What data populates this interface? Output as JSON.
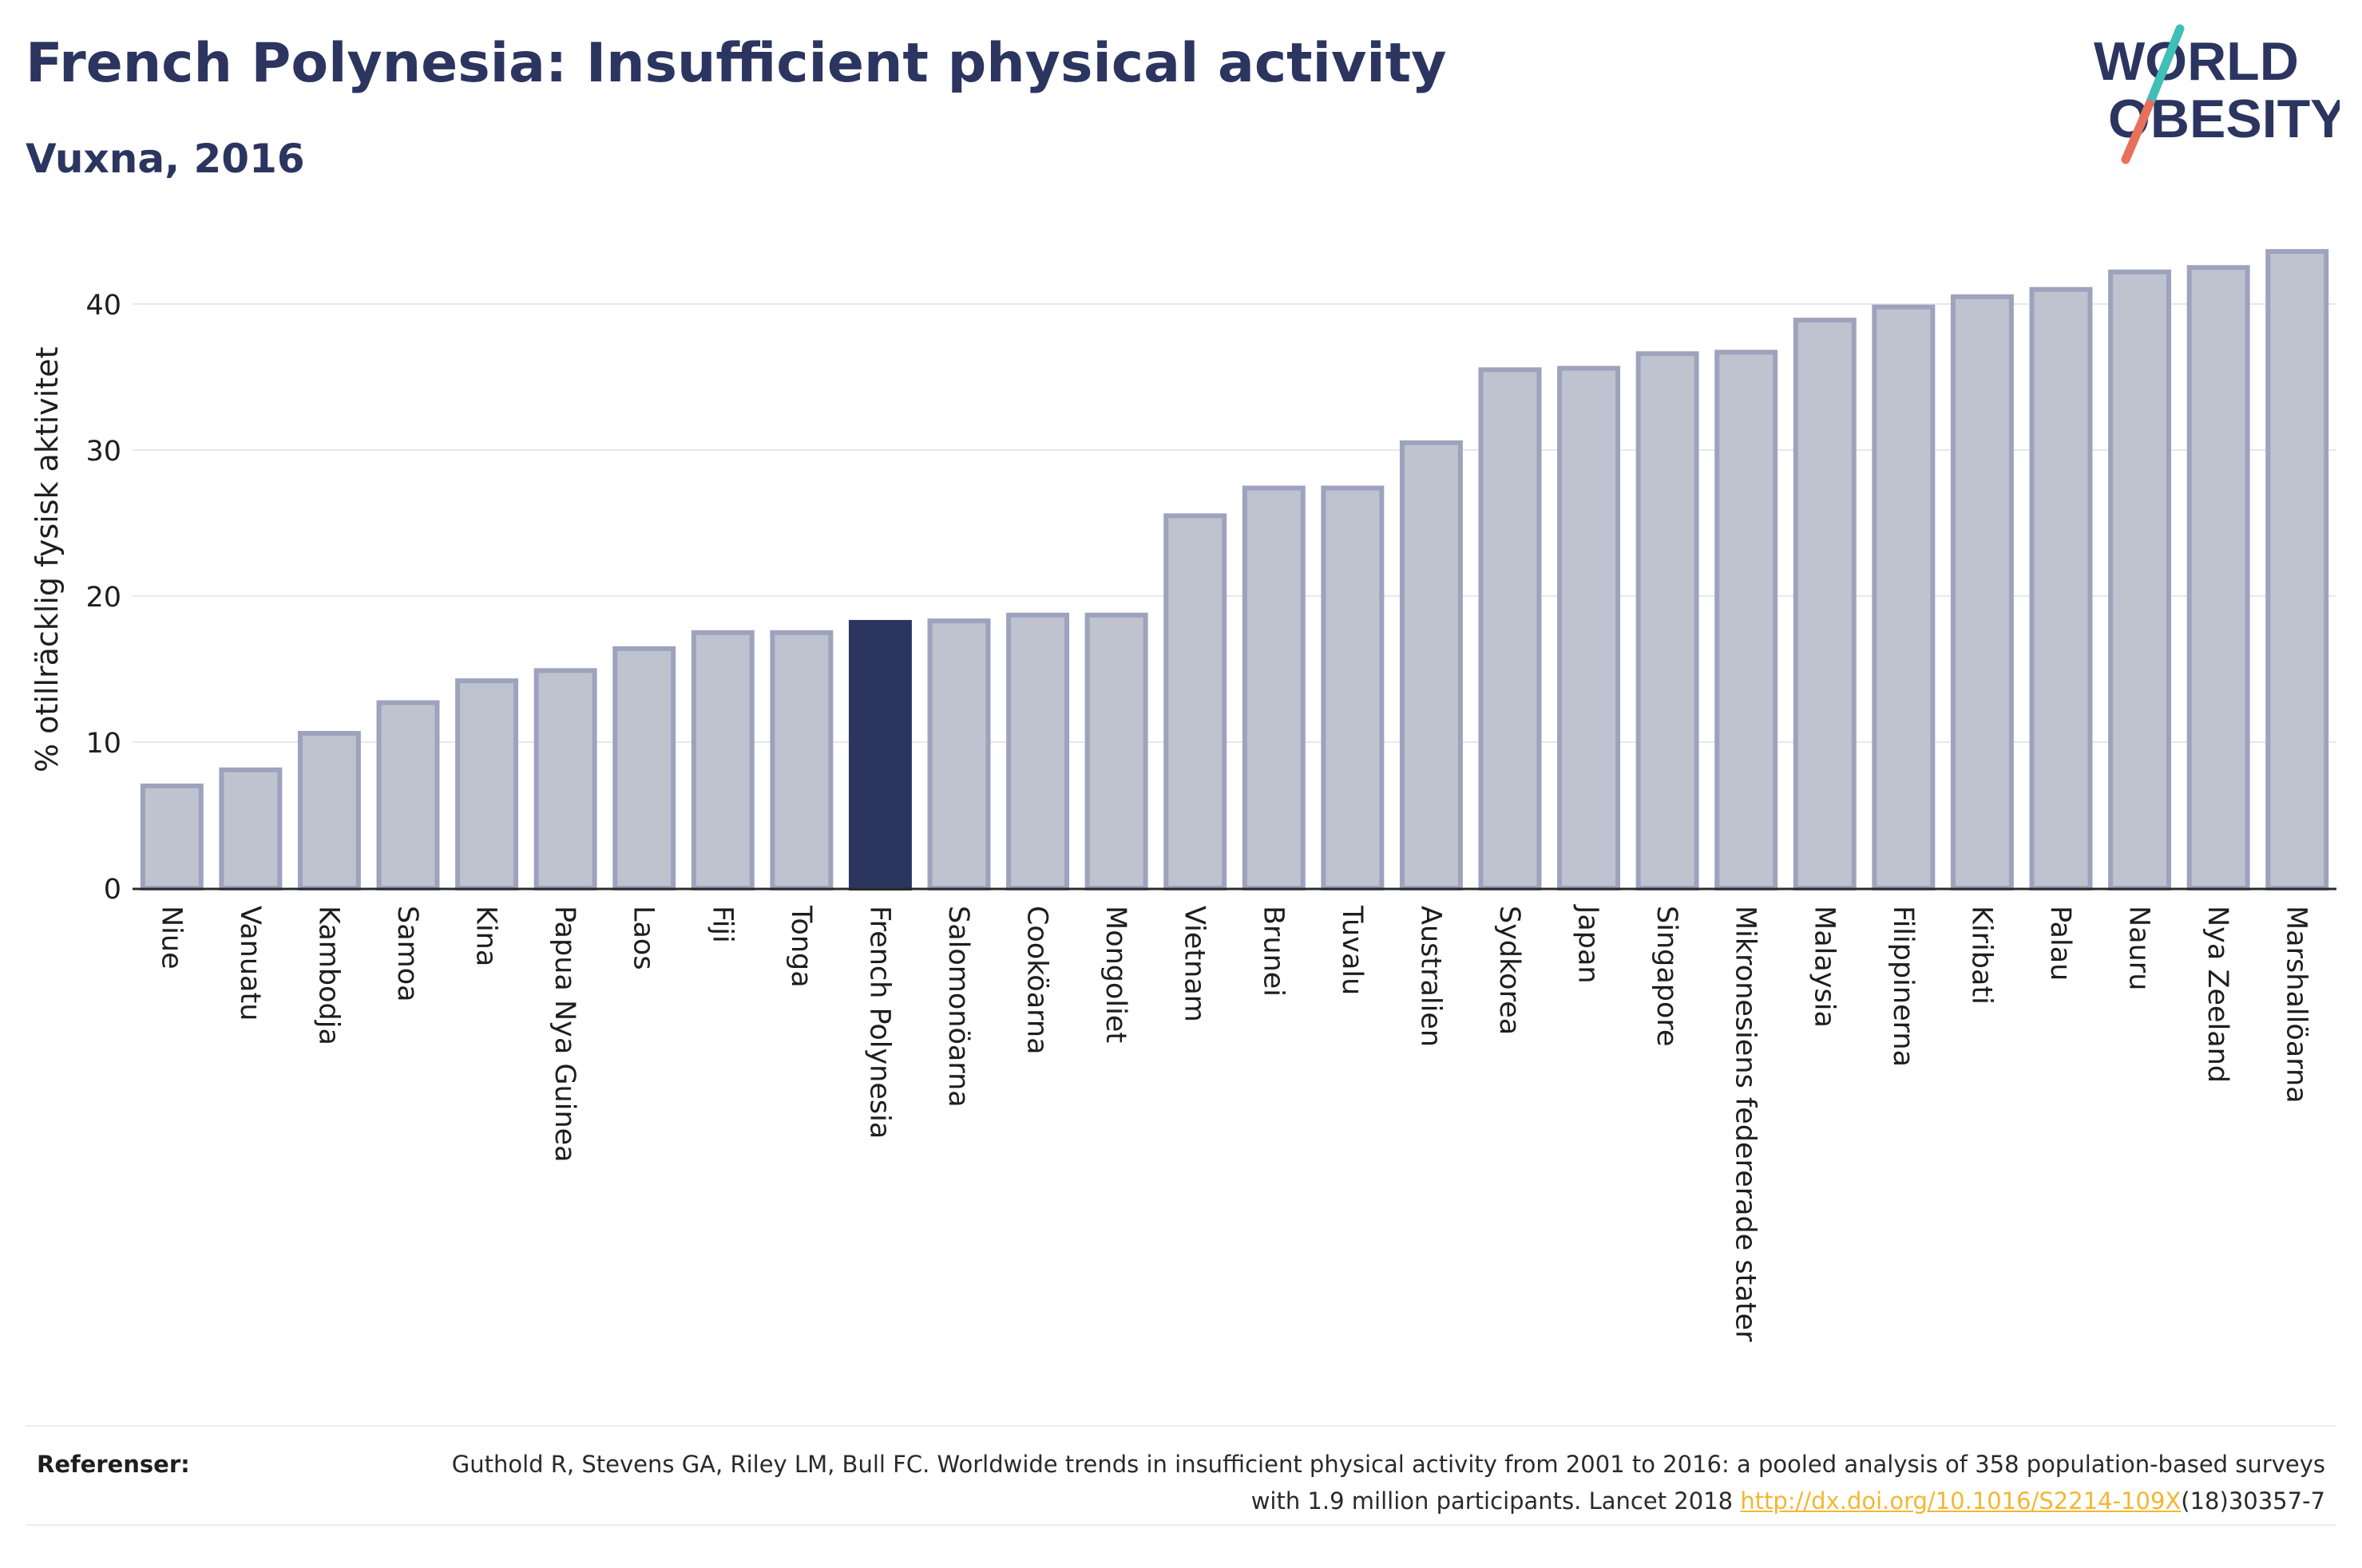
{
  "header": {
    "title": "French Polynesia: Insufficient physical activity",
    "subtitle": "Vuxna, 2016"
  },
  "logo": {
    "line1": "WORLD",
    "line2": "OBESITY",
    "color_text": "#2b3560",
    "color_slash_top": "#3fbfb5",
    "color_slash_bottom": "#e8705a"
  },
  "colors": {
    "bar": "#bfc2cf",
    "bar_stroke": "#9da3bd",
    "highlight": "#2b3560",
    "grid": "#e6e8ee",
    "axis": "#2a2a2a"
  },
  "chart_data": {
    "type": "bar",
    "ylabel": "% otillräcklig fysisk aktivitet",
    "ylim": [
      0,
      45
    ],
    "yticks": [
      0,
      10,
      20,
      30,
      40
    ],
    "grid": true,
    "highlight": "French Polynesia",
    "categories": [
      "Niue",
      "Vanuatu",
      "Kambodja",
      "Samoa",
      "Kina",
      "Papua Nya Guinea",
      "Laos",
      "Fiji",
      "Tonga",
      "French Polynesia",
      "Salomonöarna",
      "Cooköarna",
      "Mongoliet",
      "Vietnam",
      "Brunei",
      "Tuvalu",
      "Australien",
      "Sydkorea",
      "Japan",
      "Singapore",
      "Mikronesiens federerade stater",
      "Malaysia",
      "Filippinerna",
      "Kiribati",
      "Palau",
      "Nauru",
      "Nya Zeeland",
      "Marshallöarna"
    ],
    "values": [
      7.0,
      8.1,
      10.6,
      12.7,
      14.2,
      14.9,
      16.4,
      17.5,
      17.5,
      18.2,
      18.3,
      18.7,
      18.7,
      25.5,
      27.4,
      27.4,
      30.5,
      35.5,
      35.6,
      36.6,
      36.7,
      38.9,
      39.8,
      40.5,
      41.0,
      42.2,
      42.5,
      43.6
    ]
  },
  "references": {
    "label": "Referenser:",
    "text_before": "Guthold R, Stevens GA, Riley LM, Bull FC. Worldwide trends in insufficient physical activity from 2001 to 2016: a pooled analysis of 358 population-based surveys with 1.9 million participants. Lancet 2018 ",
    "link": "http://dx.doi.org/10.1016/S2214-109X",
    "text_after": "(18)30357-7"
  }
}
